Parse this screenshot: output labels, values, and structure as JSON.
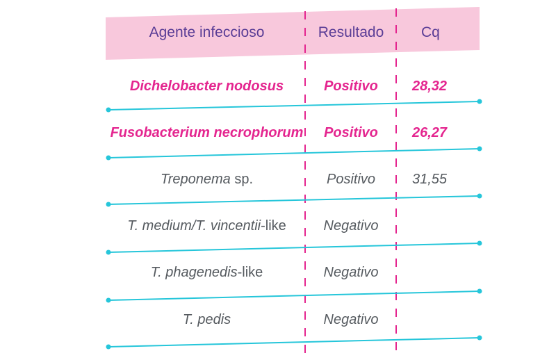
{
  "colors": {
    "header_bg": "#f8c8dc",
    "header_text": "#5a3d96",
    "highlight_text": "#e4258f",
    "normal_text": "#555a5f",
    "rule_line": "#26c6da",
    "divider": "#e4258f"
  },
  "table": {
    "headers": {
      "agent": "Agente infeccioso",
      "result": "Resultado",
      "cq": "Cq"
    },
    "rows": [
      {
        "agent_italic": "Dichelobacter nodosus",
        "agent_suffix": "",
        "result": "Positivo",
        "cq": "28,32",
        "highlight": true
      },
      {
        "agent_italic": "Fusobacterium necrophorum",
        "agent_suffix": "",
        "result": "Positivo",
        "cq": "26,27",
        "highlight": true
      },
      {
        "agent_italic": "Treponema",
        "agent_suffix": " sp.",
        "result": "Positivo",
        "cq": "31,55",
        "highlight": false
      },
      {
        "agent_italic": "T. medium/T. vincentii",
        "agent_suffix": "-like",
        "result": "Negativo",
        "cq": "",
        "highlight": false
      },
      {
        "agent_italic": "T. phagenedis",
        "agent_suffix": "-like",
        "result": "Negativo",
        "cq": "",
        "highlight": false
      },
      {
        "agent_italic": "T. pedis",
        "agent_suffix": "",
        "result": "Negativo",
        "cq": "",
        "highlight": false
      }
    ]
  }
}
